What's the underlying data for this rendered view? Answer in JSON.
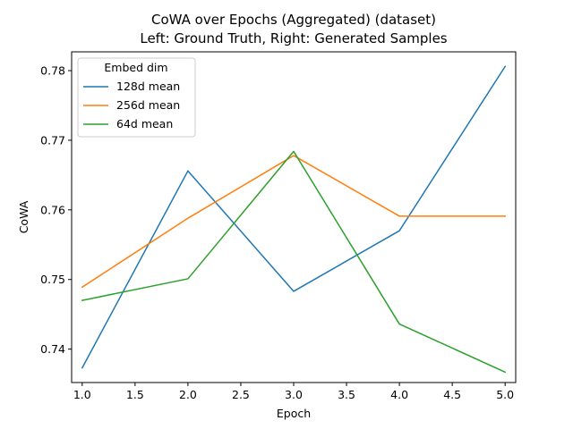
{
  "chart_data": {
    "type": "line",
    "title": "CoWA over Epochs (Aggregated) (dataset)",
    "subtitle": "Left: Ground Truth, Right: Generated Samples",
    "xlabel": "Epoch",
    "ylabel": "CoWA",
    "xlim": [
      0.9,
      5.1
    ],
    "ylim": [
      0.7352,
      0.7827
    ],
    "xticks": [
      "1.0",
      "1.5",
      "2.0",
      "2.5",
      "3.0",
      "3.5",
      "4.0",
      "4.5",
      "5.0"
    ],
    "yticks": [
      "0.74",
      "0.75",
      "0.76",
      "0.77",
      "0.78"
    ],
    "grid": false,
    "legend": {
      "title": "Embed dim",
      "position": "top-left"
    },
    "x": [
      1.0,
      2.0,
      3.0,
      4.0,
      5.0
    ],
    "series": [
      {
        "name": "128d mean",
        "color": "#1f77b4",
        "values": [
          0.7373,
          0.7656,
          0.7483,
          0.757,
          0.7806
        ]
      },
      {
        "name": "256d mean",
        "color": "#ff7f0e",
        "values": [
          0.7489,
          0.7588,
          0.7678,
          0.7591,
          0.7591
        ]
      },
      {
        "name": "64d mean",
        "color": "#2ca02c",
        "values": [
          0.747,
          0.7501,
          0.7684,
          0.7436,
          0.7367
        ]
      }
    ]
  }
}
